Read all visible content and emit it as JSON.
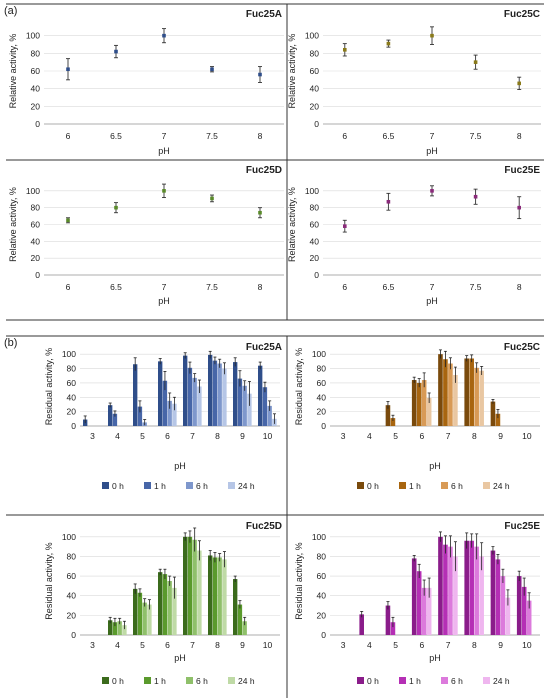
{
  "panel_labels": {
    "a": "(a)",
    "b": "(b)"
  },
  "colors": {
    "fuc25a": [
      "#2f4e8a",
      "#4766a8",
      "#7e97cc",
      "#b6c6e6"
    ],
    "fuc25c": [
      "#7a4a0c",
      "#a8650f",
      "#d89a56",
      "#e9c7a2"
    ],
    "fuc25d": [
      "#3b6b1c",
      "#5a9a2c",
      "#8fc06a",
      "#bfdaa6"
    ],
    "fuc25e": [
      "#8a1c8a",
      "#b52fb5",
      "#dc7adc",
      "#efb6ef"
    ],
    "ph_a": "#2f4e8a",
    "ph_c": "#8a7a1a",
    "ph_d": "#5a8a2a",
    "ph_e": "#8a2a7a"
  },
  "chart_data": [
    {
      "id": "ph-fuc25a",
      "type": "scatter",
      "title": "Fuc25A",
      "xlabel": "pH",
      "ylabel": "Relative activity, %",
      "x": [
        "6",
        "6.5",
        "7",
        "7.5",
        "8"
      ],
      "ylim": [
        0,
        120
      ],
      "yticks": [
        0,
        20,
        40,
        60,
        80,
        100
      ],
      "series": [
        {
          "values": [
            62,
            82,
            100,
            62,
            56
          ],
          "errors": [
            12,
            7,
            8,
            3,
            9
          ]
        }
      ]
    },
    {
      "id": "ph-fuc25c",
      "type": "scatter",
      "title": "Fuc25C",
      "xlabel": "pH",
      "ylabel": "Relative activity, %",
      "x": [
        "6",
        "6.5",
        "7",
        "7.5",
        "8"
      ],
      "ylim": [
        0,
        120
      ],
      "yticks": [
        0,
        20,
        40,
        60,
        80,
        100
      ],
      "series": [
        {
          "values": [
            84,
            91,
            100,
            70,
            46
          ],
          "errors": [
            7,
            4,
            10,
            8,
            7
          ]
        }
      ]
    },
    {
      "id": "ph-fuc25d",
      "type": "scatter",
      "title": "Fuc25D",
      "xlabel": "pH",
      "ylabel": "Relative activity, %",
      "x": [
        "6",
        "6.5",
        "7",
        "7.5",
        "8"
      ],
      "ylim": [
        0,
        120
      ],
      "yticks": [
        0,
        20,
        40,
        60,
        80,
        100
      ],
      "series": [
        {
          "values": [
            65,
            80,
            100,
            91,
            74
          ],
          "errors": [
            3,
            6,
            8,
            4,
            6
          ]
        }
      ]
    },
    {
      "id": "ph-fuc25e",
      "type": "scatter",
      "title": "Fuc25E",
      "xlabel": "pH",
      "ylabel": "Relative activity, %",
      "x": [
        "6",
        "6.5",
        "7",
        "7.5",
        "8"
      ],
      "ylim": [
        0,
        120
      ],
      "yticks": [
        0,
        20,
        40,
        60,
        80,
        100
      ],
      "series": [
        {
          "values": [
            58,
            87,
            100,
            93,
            80
          ],
          "errors": [
            7,
            10,
            6,
            9,
            13
          ]
        }
      ]
    },
    {
      "id": "stab-fuc25a",
      "type": "bar",
      "title": "Fuc25A",
      "xlabel": "pH",
      "ylabel": "Residual activity, %",
      "categories": [
        "3",
        "4",
        "5",
        "6",
        "7",
        "8",
        "9",
        "10"
      ],
      "ylim": [
        0,
        110
      ],
      "yticks": [
        0,
        20,
        40,
        60,
        80,
        100
      ],
      "legend": "bottom",
      "series": [
        {
          "name": "0 h",
          "values": [
            9,
            29,
            86,
            90,
            98,
            99,
            89,
            84
          ],
          "errors": [
            5,
            3,
            9,
            4,
            4,
            5,
            6,
            5
          ]
        },
        {
          "name": "1 h",
          "values": [
            0,
            17,
            27,
            63,
            81,
            91,
            66,
            54
          ],
          "errors": [
            0,
            4,
            8,
            13,
            8,
            5,
            11,
            7
          ]
        },
        {
          "name": "6 h",
          "values": [
            0,
            0,
            5,
            35,
            67,
            87,
            56,
            28
          ],
          "errors": [
            0,
            0,
            4,
            11,
            6,
            6,
            7,
            7
          ]
        },
        {
          "name": "24 h",
          "values": [
            0,
            0,
            0,
            31,
            55,
            80,
            45,
            10
          ],
          "errors": [
            0,
            0,
            0,
            9,
            9,
            8,
            17,
            7
          ]
        }
      ]
    },
    {
      "id": "stab-fuc25c",
      "type": "bar",
      "title": "Fuc25C",
      "xlabel": "pH",
      "ylabel": "Residual activity, %",
      "categories": [
        "3",
        "4",
        "5",
        "6",
        "7",
        "8",
        "9",
        "10"
      ],
      "ylim": [
        0,
        110
      ],
      "yticks": [
        0,
        20,
        40,
        60,
        80,
        100
      ],
      "legend": "bottom",
      "series": [
        {
          "name": "0 h",
          "values": [
            0,
            0,
            29,
            64,
            100,
            94,
            34,
            0
          ],
          "errors": [
            0,
            0,
            5,
            4,
            6,
            4,
            3,
            0
          ]
        },
        {
          "name": "1 h",
          "values": [
            0,
            0,
            11,
            60,
            93,
            94,
            17,
            0
          ],
          "errors": [
            0,
            0,
            4,
            6,
            11,
            5,
            6,
            0
          ]
        },
        {
          "name": "6 h",
          "values": [
            0,
            0,
            0,
            64,
            87,
            81,
            0,
            0
          ],
          "errors": [
            0,
            0,
            0,
            10,
            8,
            7,
            0,
            0
          ]
        },
        {
          "name": "24 h",
          "values": [
            0,
            0,
            0,
            39,
            71,
            77,
            0,
            0
          ],
          "errors": [
            0,
            0,
            0,
            7,
            11,
            6,
            0,
            0
          ]
        }
      ]
    },
    {
      "id": "stab-fuc25d",
      "type": "bar",
      "title": "Fuc25D",
      "xlabel": "pH",
      "ylabel": "Residual activity, %",
      "categories": [
        "3",
        "4",
        "5",
        "6",
        "7",
        "8",
        "9",
        "10"
      ],
      "ylim": [
        0,
        110
      ],
      "yticks": [
        0,
        20,
        40,
        60,
        80,
        100
      ],
      "legend": "bottom",
      "series": [
        {
          "name": "0 h",
          "values": [
            0,
            15,
            47,
            64,
            100,
            81,
            57,
            0
          ],
          "errors": [
            0,
            3,
            5,
            3,
            4,
            5,
            3,
            0
          ]
        },
        {
          "name": "1 h",
          "values": [
            0,
            13,
            43,
            62,
            100,
            79,
            31,
            0
          ],
          "errors": [
            0,
            4,
            4,
            5,
            6,
            5,
            4,
            0
          ]
        },
        {
          "name": "6 h",
          "values": [
            0,
            14,
            33,
            55,
            97,
            79,
            14,
            0
          ],
          "errors": [
            0,
            3,
            4,
            5,
            12,
            4,
            4,
            0
          ]
        },
        {
          "name": "24 h",
          "values": [
            0,
            10,
            31,
            48,
            86,
            77,
            0,
            0
          ],
          "errors": [
            0,
            4,
            5,
            11,
            10,
            8,
            0,
            0
          ]
        }
      ]
    },
    {
      "id": "stab-fuc25e",
      "type": "bar",
      "title": "Fuc25E",
      "xlabel": "pH",
      "ylabel": "Residual activity, %",
      "categories": [
        "3",
        "4",
        "5",
        "6",
        "7",
        "8",
        "9",
        "10"
      ],
      "ylim": [
        0,
        110
      ],
      "yticks": [
        0,
        20,
        40,
        60,
        80,
        100
      ],
      "legend": "bottom",
      "series": [
        {
          "name": "0 h",
          "values": [
            0,
            21,
            30,
            78,
            100,
            96,
            86,
            60
          ],
          "errors": [
            0,
            3,
            4,
            3,
            5,
            8,
            4,
            5
          ]
        },
        {
          "name": "1 h",
          "values": [
            0,
            0,
            13,
            65,
            92,
            96,
            77,
            49
          ],
          "errors": [
            0,
            0,
            5,
            7,
            9,
            7,
            5,
            9
          ]
        },
        {
          "name": "6 h",
          "values": [
            0,
            0,
            0,
            48,
            90,
            90,
            60,
            35
          ],
          "errors": [
            0,
            0,
            0,
            8,
            11,
            13,
            7,
            8
          ]
        },
        {
          "name": "24 h",
          "values": [
            0,
            0,
            0,
            48,
            80,
            80,
            38,
            0
          ],
          "errors": [
            0,
            0,
            0,
            10,
            15,
            14,
            8,
            0
          ]
        }
      ]
    }
  ]
}
